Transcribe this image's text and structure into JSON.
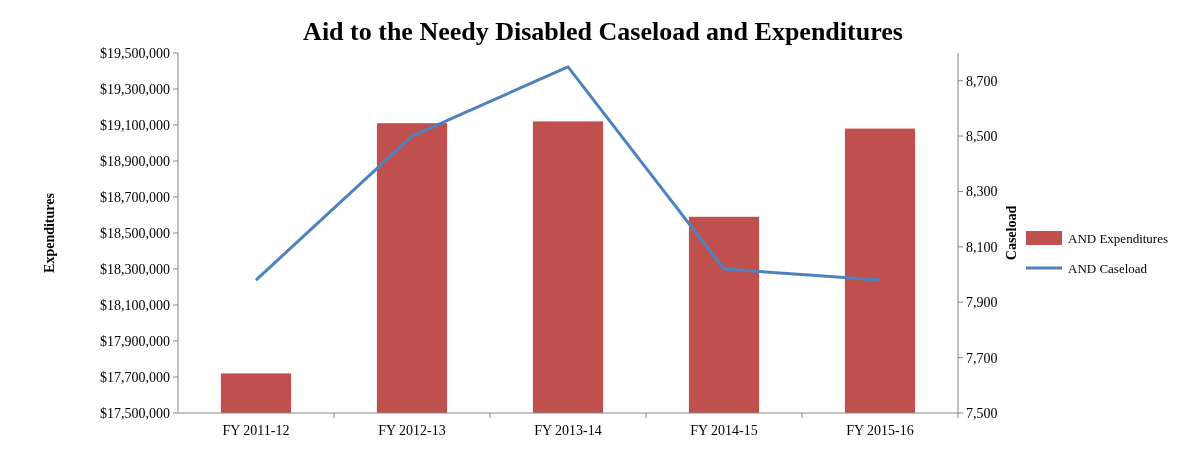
{
  "chart_data": {
    "type": "bar",
    "title": "Aid to the Needy Disabled Caseload and Expenditures",
    "ylabel": "Expenditures",
    "y2label": "Caseload",
    "categories": [
      "FY 2011-12",
      "FY 2012-13",
      "FY 2013-14",
      "FY 2014-15",
      "FY 2015-16"
    ],
    "series": [
      {
        "name": "AND Expenditures",
        "color": "#c0504d",
        "values": [
          17720000,
          19110000,
          19120000,
          18590000,
          19080000
        ]
      },
      {
        "name": "AND Caseload",
        "type": "line",
        "axis": "y2",
        "color": "#4f81bd",
        "values": [
          7980,
          8500,
          8750,
          8020,
          7980
        ]
      }
    ],
    "ylim": [
      17500000,
      19500000
    ],
    "yticks": [
      {
        "value": 17500000,
        "label": "$17,500,000"
      },
      {
        "value": 17700000,
        "label": "$17,700,000"
      },
      {
        "value": 17900000,
        "label": "$17,900,000"
      },
      {
        "value": 18100000,
        "label": "$18,100,000"
      },
      {
        "value": 18300000,
        "label": "$18,300,000"
      },
      {
        "value": 18500000,
        "label": "$18,500,000"
      },
      {
        "value": 18700000,
        "label": "$18,700,000"
      },
      {
        "value": 18900000,
        "label": "$18,900,000"
      },
      {
        "value": 19100000,
        "label": "$19,100,000"
      },
      {
        "value": 19300000,
        "label": "$19,300,000"
      },
      {
        "value": 19500000,
        "label": "$19,500,000"
      }
    ],
    "y2lim": [
      7500,
      8800
    ],
    "y2ticks": [
      {
        "value": 7500,
        "label": "7,500"
      },
      {
        "value": 7700,
        "label": "7,700"
      },
      {
        "value": 7900,
        "label": "7,900"
      },
      {
        "value": 8100,
        "label": "8,100"
      },
      {
        "value": 8300,
        "label": "8,300"
      },
      {
        "value": 8500,
        "label": "8,500"
      },
      {
        "value": 8700,
        "label": "8,700"
      }
    ],
    "legend": "right",
    "grid": false,
    "marker": "none"
  }
}
